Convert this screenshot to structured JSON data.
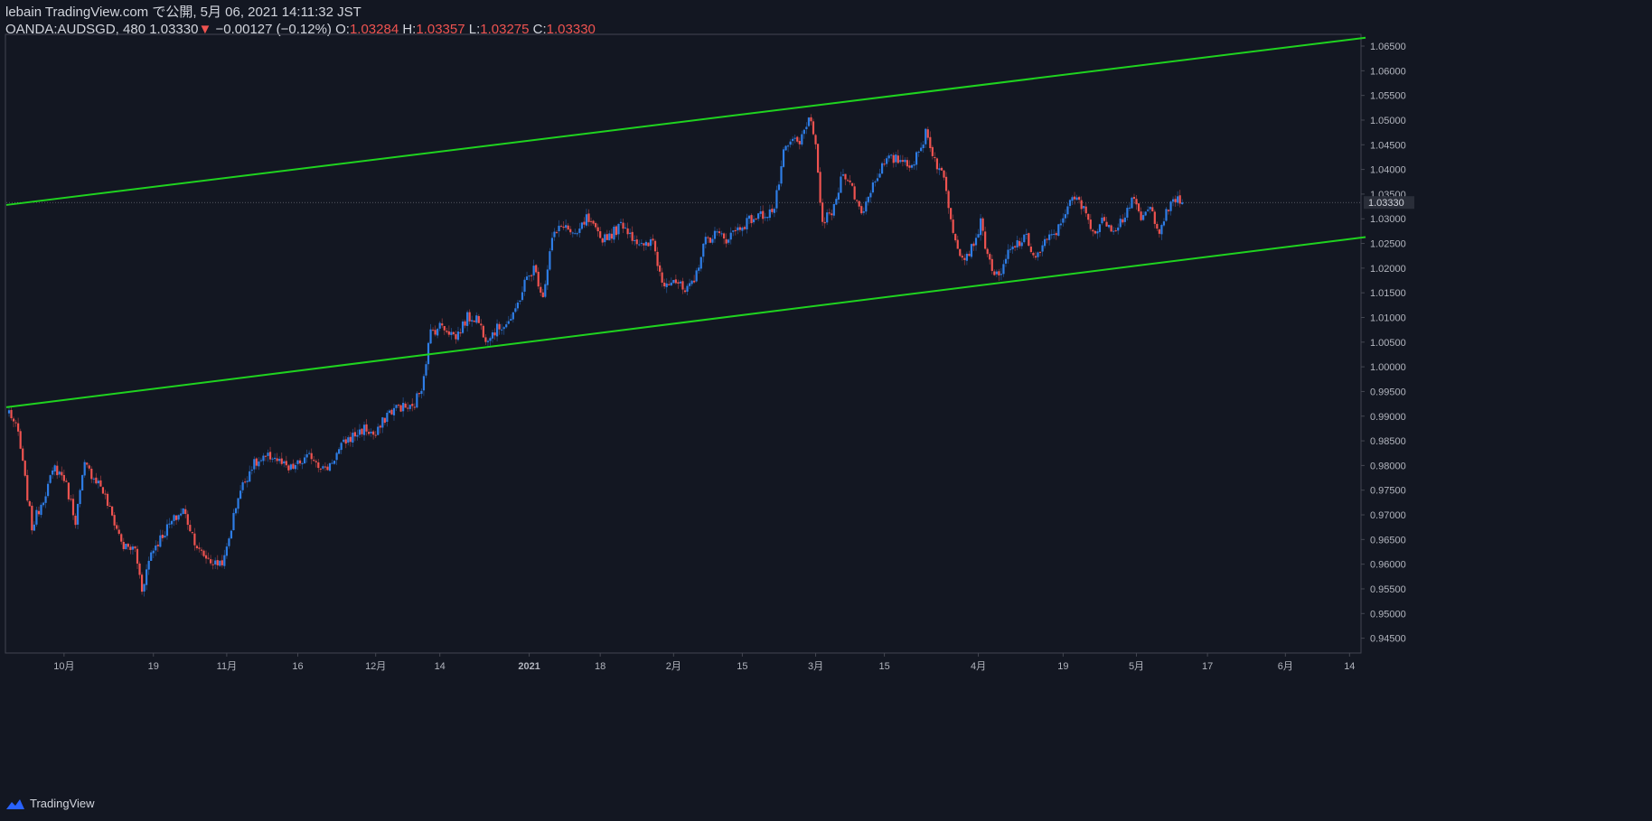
{
  "header": {
    "publish_line": "lebain TradingView.com で公開, 5月 06, 2021 14:11:32 JST",
    "symbol_interval": "OANDA:AUDSGD, 480",
    "last_price": "1.03330",
    "change_arrow": "▼",
    "change": "−0.00127 (−0.12%)",
    "o_label": "O:",
    "o_value": "1.03284",
    "h_label": "H:",
    "h_value": "1.03357",
    "l_label": "L:",
    "l_value": "1.03275",
    "c_label": "C:",
    "c_value": "1.03330"
  },
  "footer": {
    "brand": "TradingView"
  },
  "colors": {
    "background": "#131722",
    "up_candle": "#2e7de6",
    "down_candle": "#ef5350",
    "trendline": "#1fd31f",
    "axis_text": "#b2b5be",
    "last_price_line": "#787b86"
  },
  "chart_data": {
    "type": "candlestick",
    "symbol": "OANDA:AUDSGD",
    "interval": "480",
    "ylim": [
      0.942,
      1.0672
    ],
    "y_ticks": [
      "1.06500",
      "1.06000",
      "1.05500",
      "1.05000",
      "1.04500",
      "1.04000",
      "1.03500",
      "1.03000",
      "1.02500",
      "1.02000",
      "1.01500",
      "1.01000",
      "1.00500",
      "1.00000",
      "0.99500",
      "0.99000",
      "0.98500",
      "0.98000",
      "0.97500",
      "0.97000",
      "0.96500",
      "0.96000",
      "0.95500",
      "0.95000",
      "0.94500"
    ],
    "last_price_label": "1.03330",
    "last_price": 1.0333,
    "x_ticks": [
      {
        "label": "10月",
        "bar": 24
      },
      {
        "label": "19",
        "bar": 63
      },
      {
        "label": "11月",
        "bar": 95
      },
      {
        "label": "16",
        "bar": 126
      },
      {
        "label": "12月",
        "bar": 160
      },
      {
        "label": "14",
        "bar": 188
      },
      {
        "label": "2021",
        "bar": 227
      },
      {
        "label": "18",
        "bar": 258
      },
      {
        "label": "2月",
        "bar": 290
      },
      {
        "label": "15",
        "bar": 320
      },
      {
        "label": "3月",
        "bar": 352
      },
      {
        "label": "15",
        "bar": 382
      },
      {
        "label": "4月",
        "bar": 423
      },
      {
        "label": "19",
        "bar": 460
      },
      {
        "label": "5月",
        "bar": 492
      },
      {
        "label": "17",
        "bar": 523
      },
      {
        "label": "6月",
        "bar": 557
      },
      {
        "label": "14",
        "bar": 585
      }
    ],
    "trendlines": [
      {
        "name": "upper-channel",
        "from": {
          "bar": 0,
          "y": 1.0328
        },
        "to": {
          "bar": 592,
          "y": 1.0667
        }
      },
      {
        "name": "lower-channel",
        "from": {
          "bar": 0,
          "y": 0.9918
        },
        "to": {
          "bar": 592,
          "y": 1.0263
        }
      }
    ],
    "path": [
      [
        0,
        0.9912
      ],
      [
        4,
        0.9865
      ],
      [
        10,
        0.9675
      ],
      [
        20,
        0.9795
      ],
      [
        24,
        0.9775
      ],
      [
        29,
        0.969
      ],
      [
        33,
        0.98
      ],
      [
        40,
        0.976
      ],
      [
        50,
        0.9635
      ],
      [
        55,
        0.963
      ],
      [
        58,
        0.955
      ],
      [
        62,
        0.9625
      ],
      [
        70,
        0.968
      ],
      [
        76,
        0.971
      ],
      [
        83,
        0.9625
      ],
      [
        90,
        0.96
      ],
      [
        94,
        0.961
      ],
      [
        100,
        0.974
      ],
      [
        106,
        0.98
      ],
      [
        115,
        0.982
      ],
      [
        122,
        0.979
      ],
      [
        132,
        0.982
      ],
      [
        138,
        0.979
      ],
      [
        147,
        0.985
      ],
      [
        155,
        0.9875
      ],
      [
        160,
        0.986
      ],
      [
        165,
        0.9905
      ],
      [
        170,
        0.992
      ],
      [
        176,
        0.9915
      ],
      [
        180,
        0.996
      ],
      [
        184,
        1.007
      ],
      [
        189,
        1.0085
      ],
      [
        195,
        1.006
      ],
      [
        200,
        1.01
      ],
      [
        204,
        1.01
      ],
      [
        208,
        1.006
      ],
      [
        214,
        1.008
      ],
      [
        220,
        1.01
      ],
      [
        225,
        1.017
      ],
      [
        229,
        1.02
      ],
      [
        233,
        1.0145
      ],
      [
        237,
        1.026
      ],
      [
        242,
        1.029
      ],
      [
        247,
        1.026
      ],
      [
        252,
        1.03
      ],
      [
        258,
        1.026
      ],
      [
        263,
        1.027
      ],
      [
        268,
        1.029
      ],
      [
        272,
        1.0265
      ],
      [
        277,
        1.024
      ],
      [
        281,
        1.0255
      ],
      [
        285,
        1.017
      ],
      [
        290,
        1.018
      ],
      [
        295,
        1.015
      ],
      [
        299,
        1.017
      ],
      [
        303,
        1.025
      ],
      [
        308,
        1.027
      ],
      [
        313,
        1.026
      ],
      [
        318,
        1.028
      ],
      [
        324,
        1.03
      ],
      [
        330,
        1.031
      ],
      [
        334,
        1.032
      ],
      [
        338,
        1.043
      ],
      [
        342,
        1.046
      ],
      [
        345,
        1.045
      ],
      [
        349,
        1.051
      ],
      [
        352,
        1.044
      ],
      [
        355,
        1.029
      ],
      [
        360,
        1.032
      ],
      [
        364,
        1.04
      ],
      [
        368,
        1.036
      ],
      [
        372,
        1.031
      ],
      [
        376,
        1.036
      ],
      [
        380,
        1.04
      ],
      [
        384,
        1.042
      ],
      [
        390,
        1.042
      ],
      [
        394,
        1.041
      ],
      [
        398,
        1.044
      ],
      [
        400,
        1.048
      ],
      [
        404,
        1.042
      ],
      [
        408,
        1.038
      ],
      [
        412,
        1.028
      ],
      [
        416,
        1.022
      ],
      [
        420,
        1.024
      ],
      [
        424,
        1.029
      ],
      [
        428,
        1.021
      ],
      [
        432,
        1.0175
      ],
      [
        436,
        1.023
      ],
      [
        440,
        1.025
      ],
      [
        444,
        1.026
      ],
      [
        448,
        1.022
      ],
      [
        452,
        1.025
      ],
      [
        458,
        1.028
      ],
      [
        462,
        1.033
      ],
      [
        466,
        1.034
      ],
      [
        470,
        1.031
      ],
      [
        474,
        1.027
      ],
      [
        478,
        1.03
      ],
      [
        482,
        1.028
      ],
      [
        486,
        1.03
      ],
      [
        490,
        1.034
      ],
      [
        494,
        1.03
      ],
      [
        498,
        1.032
      ],
      [
        502,
        1.028
      ],
      [
        506,
        1.032
      ],
      [
        510,
        1.0342
      ],
      [
        512,
        1.0333
      ]
    ]
  }
}
